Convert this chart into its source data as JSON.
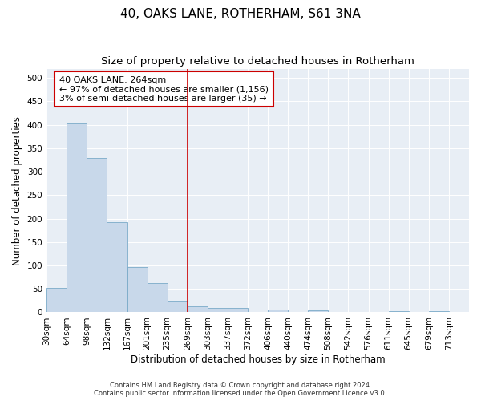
{
  "title": "40, OAKS LANE, ROTHERHAM, S61 3NA",
  "subtitle": "Size of property relative to detached houses in Rotherham",
  "xlabel": "Distribution of detached houses by size in Rotherham",
  "ylabel": "Number of detached properties",
  "bar_color": "#c8d8ea",
  "bar_edge_color": "#7aaac8",
  "vline_color": "#cc0000",
  "vline_x": 7.0,
  "categories": [
    "30sqm",
    "64sqm",
    "98sqm",
    "132sqm",
    "167sqm",
    "201sqm",
    "235sqm",
    "269sqm",
    "303sqm",
    "337sqm",
    "372sqm",
    "406sqm",
    "440sqm",
    "474sqm",
    "508sqm",
    "542sqm",
    "576sqm",
    "611sqm",
    "645sqm",
    "679sqm",
    "713sqm"
  ],
  "values": [
    52,
    405,
    330,
    192,
    97,
    63,
    25,
    13,
    10,
    10,
    0,
    6,
    0,
    4,
    0,
    0,
    0,
    3,
    0,
    3,
    0
  ],
  "annotation_line1": "40 OAKS LANE: 264sqm",
  "annotation_line2": "← 97% of detached houses are smaller (1,156)",
  "annotation_line3": "3% of semi-detached houses are larger (35) →",
  "annotation_box_color": "#ffffff",
  "annotation_box_edge": "#cc0000",
  "footer_line1": "Contains HM Land Registry data © Crown copyright and database right 2024.",
  "footer_line2": "Contains public sector information licensed under the Open Government Licence v3.0.",
  "ylim": [
    0,
    520
  ],
  "yticks": [
    0,
    50,
    100,
    150,
    200,
    250,
    300,
    350,
    400,
    450,
    500
  ],
  "plot_bg_color": "#e8eef5",
  "title_fontsize": 11,
  "subtitle_fontsize": 9.5,
  "tick_fontsize": 7.5,
  "label_fontsize": 8.5,
  "annotation_fontsize": 8
}
